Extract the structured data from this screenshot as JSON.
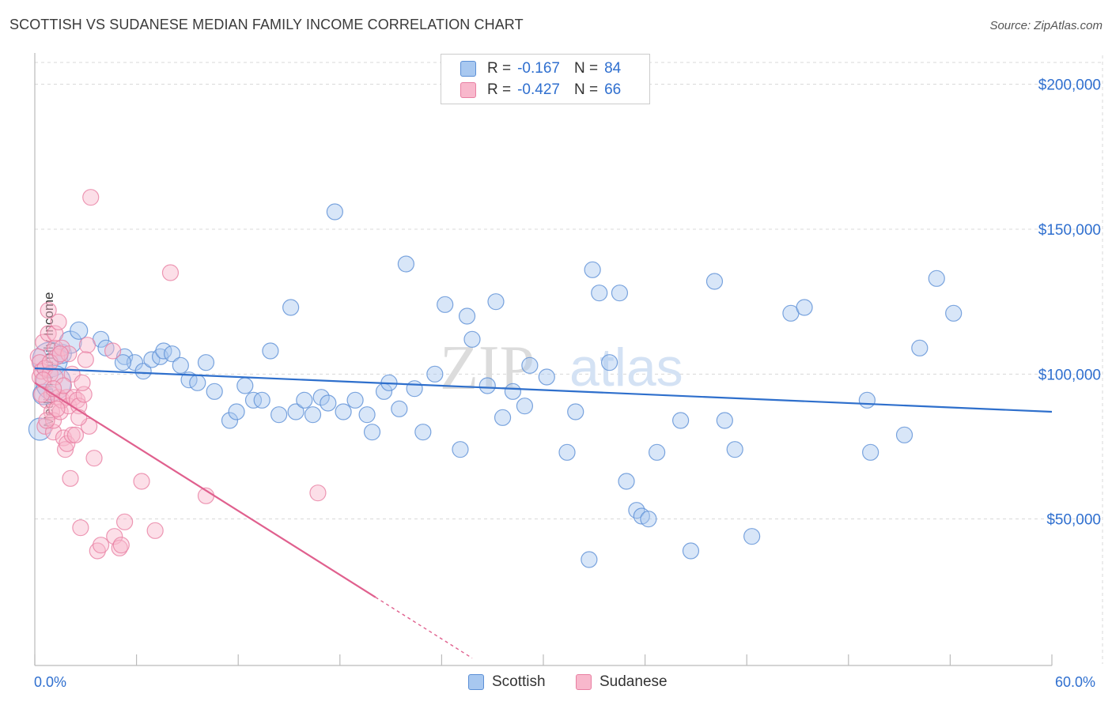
{
  "title": "SCOTTISH VS SUDANESE MEDIAN FAMILY INCOME CORRELATION CHART",
  "source": "Source: ZipAtlas.com",
  "watermark": {
    "zip": "ZIP",
    "atlas": "atlas"
  },
  "colors": {
    "scottish_fill": "#a8c8f0",
    "scottish_stroke": "#5b8fd6",
    "scottish_line": "#2e6fcc",
    "sudanese_fill": "#f8b8cc",
    "sudanese_stroke": "#e87fa2",
    "sudanese_line": "#e0608e",
    "tick_label": "#2f6fcf",
    "grid": "#d8d8d8"
  },
  "legend": {
    "rows": [
      {
        "series": "scottish",
        "r_label": "R =",
        "r_value": "-0.167",
        "n_label": "N =",
        "n_value": "84"
      },
      {
        "series": "sudanese",
        "r_label": "R =",
        "r_value": "-0.427",
        "n_label": "N =",
        "n_value": "66"
      }
    ]
  },
  "bottom_legend": [
    "Scottish",
    "Sudanese"
  ],
  "chart_data": {
    "type": "scatter",
    "title": "SCOTTISH VS SUDANESE MEDIAN FAMILY INCOME CORRELATION CHART",
    "xlabel": "",
    "ylabel": "Median Family Income",
    "xlim": [
      0,
      60
    ],
    "ylim": [
      0,
      210000
    ],
    "x_tick_labels": [
      "0.0%",
      "60.0%"
    ],
    "y_ticks": [
      50000,
      100000,
      150000,
      200000
    ],
    "y_tick_labels": [
      "$50,000",
      "$100,000",
      "$150,000",
      "$200,000"
    ],
    "grid": true,
    "legend_position": "top-center",
    "series": [
      {
        "name": "Scottish",
        "color": "#5b8fd6",
        "r": -0.167,
        "n": 84,
        "trend": {
          "x0": 0,
          "y0": 102000,
          "x1": 60,
          "y1": 87000,
          "dashed_from": null
        },
        "points": [
          [
            0.3,
            81000,
            14
          ],
          [
            0.5,
            93000,
            13
          ],
          [
            0.9,
            105000,
            22
          ],
          [
            1.1,
            97000,
            22
          ],
          [
            1.6,
            107000,
            12
          ],
          [
            2.1,
            111000,
            14
          ],
          [
            2.6,
            115000,
            11
          ],
          [
            3.9,
            112000,
            10
          ],
          [
            4.2,
            109000,
            10
          ],
          [
            5.3,
            106000,
            10
          ],
          [
            5.9,
            104000,
            10
          ],
          [
            6.4,
            101000,
            10
          ],
          [
            6.9,
            105000,
            10
          ],
          [
            7.4,
            106000,
            10
          ],
          [
            7.6,
            108000,
            10
          ],
          [
            8.1,
            107000,
            10
          ],
          [
            8.6,
            103000,
            10
          ],
          [
            9.1,
            98000,
            10
          ],
          [
            9.6,
            97000,
            10
          ],
          [
            10.1,
            104000,
            10
          ],
          [
            10.6,
            94000,
            10
          ],
          [
            11.5,
            84000,
            10
          ],
          [
            11.9,
            87000,
            10
          ],
          [
            12.4,
            96000,
            10
          ],
          [
            12.9,
            91000,
            10
          ],
          [
            13.4,
            91000,
            10
          ],
          [
            13.9,
            108000,
            10
          ],
          [
            14.4,
            86000,
            10
          ],
          [
            15.1,
            123000,
            10
          ],
          [
            15.4,
            87000,
            10
          ],
          [
            15.9,
            91000,
            10
          ],
          [
            16.4,
            86000,
            10
          ],
          [
            16.9,
            92000,
            10
          ],
          [
            17.3,
            90000,
            10
          ],
          [
            17.7,
            156000,
            10
          ],
          [
            18.2,
            87000,
            10
          ],
          [
            18.9,
            91000,
            10
          ],
          [
            19.6,
            86000,
            10
          ],
          [
            19.9,
            80000,
            10
          ],
          [
            20.6,
            94000,
            10
          ],
          [
            20.9,
            97000,
            10
          ],
          [
            21.5,
            88000,
            10
          ],
          [
            21.9,
            138000,
            10
          ],
          [
            22.4,
            95000,
            10
          ],
          [
            22.9,
            80000,
            10
          ],
          [
            23.6,
            100000,
            10
          ],
          [
            24.2,
            124000,
            10
          ],
          [
            25.1,
            74000,
            10
          ],
          [
            25.5,
            120000,
            10
          ],
          [
            25.8,
            112000,
            10
          ],
          [
            26.7,
            96000,
            10
          ],
          [
            27.2,
            125000,
            10
          ],
          [
            27.6,
            85000,
            10
          ],
          [
            28.2,
            94000,
            10
          ],
          [
            28.9,
            89000,
            10
          ],
          [
            29.2,
            103000,
            10
          ],
          [
            30.2,
            99000,
            10
          ],
          [
            31.4,
            73000,
            10
          ],
          [
            31.9,
            87000,
            10
          ],
          [
            32.7,
            36000,
            10
          ],
          [
            32.9,
            136000,
            10
          ],
          [
            33.3,
            128000,
            10
          ],
          [
            33.9,
            104000,
            10
          ],
          [
            34.5,
            128000,
            10
          ],
          [
            34.9,
            63000,
            10
          ],
          [
            35.5,
            53000,
            10
          ],
          [
            35.8,
            51000,
            10
          ],
          [
            36.2,
            50000,
            10
          ],
          [
            36.7,
            73000,
            10
          ],
          [
            38.1,
            84000,
            10
          ],
          [
            38.7,
            39000,
            10
          ],
          [
            40.1,
            132000,
            10
          ],
          [
            40.7,
            84000,
            10
          ],
          [
            41.3,
            74000,
            10
          ],
          [
            42.3,
            44000,
            10
          ],
          [
            44.6,
            121000,
            10
          ],
          [
            45.4,
            123000,
            10
          ],
          [
            49.1,
            91000,
            10
          ],
          [
            49.3,
            73000,
            10
          ],
          [
            51.3,
            79000,
            10
          ],
          [
            52.2,
            109000,
            10
          ],
          [
            53.2,
            133000,
            10
          ],
          [
            54.2,
            121000,
            10
          ],
          [
            5.2,
            104000,
            10
          ]
        ]
      },
      {
        "name": "Sudanese",
        "color": "#e87fa2",
        "r": -0.427,
        "n": 66,
        "trend": {
          "x0": 0,
          "y0": 97000,
          "x1": 20.1,
          "y1": 23000,
          "dashed_to_x": 25.8,
          "dashed_to_y": 2000
        },
        "points": [
          [
            0.2,
            106000,
            10
          ],
          [
            0.3,
            104000,
            10
          ],
          [
            0.3,
            99000,
            10
          ],
          [
            0.4,
            101000,
            10
          ],
          [
            0.5,
            111000,
            10
          ],
          [
            0.6,
            102000,
            10
          ],
          [
            0.6,
            82000,
            10
          ],
          [
            0.7,
            91000,
            10
          ],
          [
            0.8,
            114000,
            10
          ],
          [
            0.8,
            122000,
            10
          ],
          [
            0.9,
            100000,
            10
          ],
          [
            1.0,
            93000,
            10
          ],
          [
            1.0,
            87000,
            10
          ],
          [
            1.1,
            80000,
            10
          ],
          [
            1.1,
            84000,
            10
          ],
          [
            1.2,
            109000,
            10
          ],
          [
            1.2,
            114000,
            10
          ],
          [
            1.2,
            99000,
            10
          ],
          [
            1.3,
            106000,
            10
          ],
          [
            1.4,
            118000,
            10
          ],
          [
            1.4,
            92000,
            10
          ],
          [
            1.5,
            87000,
            10
          ],
          [
            1.6,
            109000,
            10
          ],
          [
            1.6,
            91000,
            10
          ],
          [
            1.7,
            78000,
            10
          ],
          [
            1.8,
            74000,
            10
          ],
          [
            1.9,
            92000,
            10
          ],
          [
            1.9,
            76000,
            10
          ],
          [
            2.0,
            107000,
            10
          ],
          [
            2.0,
            89000,
            10
          ],
          [
            2.1,
            64000,
            10
          ],
          [
            2.2,
            79000,
            10
          ],
          [
            2.3,
            92000,
            10
          ],
          [
            2.4,
            79000,
            10
          ],
          [
            2.5,
            91000,
            10
          ],
          [
            2.6,
            89000,
            10
          ],
          [
            2.7,
            47000,
            10
          ],
          [
            2.9,
            93000,
            10
          ],
          [
            3.1,
            110000,
            10
          ],
          [
            3.2,
            82000,
            10
          ],
          [
            3.3,
            161000,
            10
          ],
          [
            3.5,
            71000,
            10
          ],
          [
            3.7,
            39000,
            10
          ],
          [
            3.9,
            41000,
            10
          ],
          [
            4.6,
            108000,
            10
          ],
          [
            4.7,
            44000,
            10
          ],
          [
            5.0,
            40000,
            10
          ],
          [
            5.1,
            41000,
            10
          ],
          [
            5.3,
            49000,
            10
          ],
          [
            6.3,
            63000,
            10
          ],
          [
            7.1,
            46000,
            10
          ],
          [
            8.0,
            135000,
            10
          ],
          [
            10.1,
            58000,
            10
          ],
          [
            16.7,
            59000,
            10
          ],
          [
            0.5,
            98000,
            10
          ],
          [
            0.9,
            104000,
            10
          ],
          [
            1.3,
            88000,
            10
          ],
          [
            0.4,
            93000,
            10
          ],
          [
            2.2,
            100000,
            10
          ],
          [
            1.7,
            96000,
            10
          ],
          [
            0.7,
            84000,
            10
          ],
          [
            1.5,
            107000,
            10
          ],
          [
            2.6,
            85000,
            10
          ],
          [
            3.0,
            105000,
            10
          ],
          [
            1.1,
            95000,
            10
          ],
          [
            2.8,
            97000,
            10
          ]
        ]
      }
    ]
  }
}
